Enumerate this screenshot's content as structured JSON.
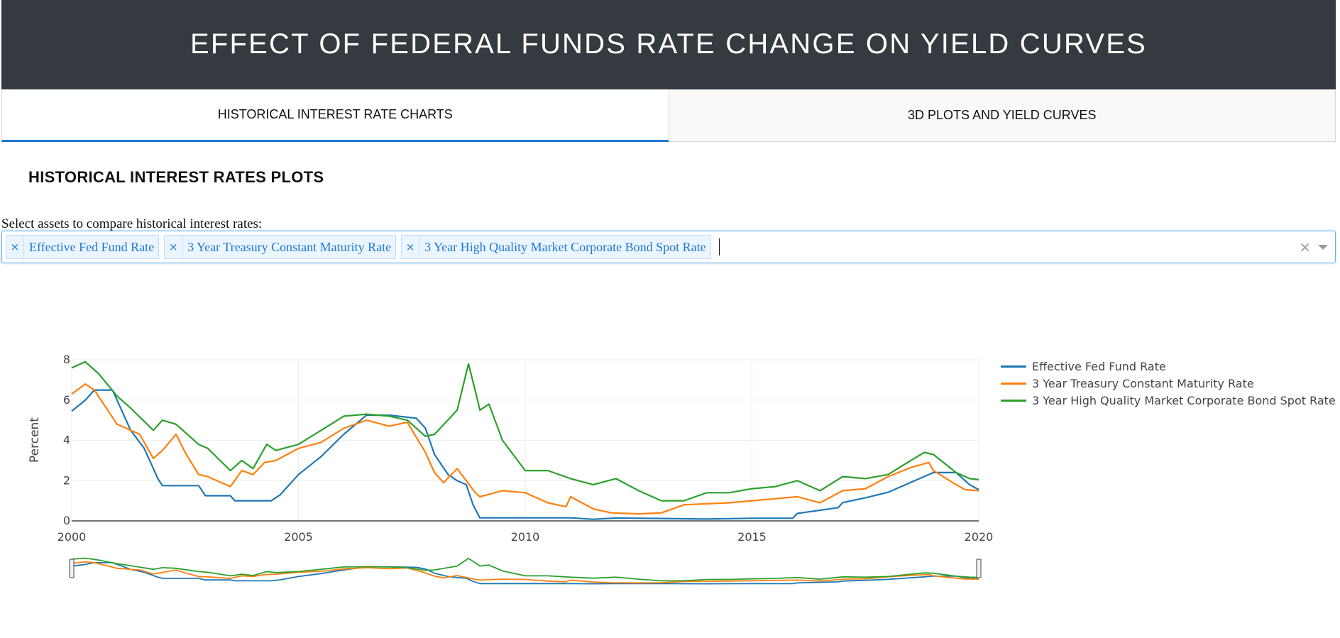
{
  "header": {
    "title": "EFFECT OF FEDERAL FUNDS RATE CHANGE ON YIELD CURVES"
  },
  "tabs": [
    {
      "label": "HISTORICAL INTEREST RATE CHARTS",
      "active": true
    },
    {
      "label": "3D PLOTS AND YIELD CURVES",
      "active": false
    }
  ],
  "section": {
    "heading": "HISTORICAL INTEREST RATES PLOTS",
    "select_label": "Select assets to compare historical interest rates:"
  },
  "selector": {
    "selected": [
      "Effective Fed Fund Rate",
      "3 Year Treasury Constant Maturity Rate",
      "3 Year High Quality Market Corporate Bond Spot Rate"
    ],
    "remove_glyph": "×",
    "clear_glyph": "×"
  },
  "colors": {
    "accent": "#1f78d1",
    "header_bg": "#343a40",
    "tag_bg": "#ebf5ff"
  },
  "chart_data": {
    "type": "line",
    "title": "",
    "xlabel": "",
    "ylabel": "Percent",
    "xlim": [
      2000,
      2020
    ],
    "ylim": [
      0,
      8
    ],
    "x_ticks": [
      "2000",
      "2005",
      "2010",
      "2015",
      "2020"
    ],
    "y_ticks": [
      "0",
      "2",
      "4",
      "6",
      "8"
    ],
    "grid": true,
    "legend_position": "right",
    "range_slider": true,
    "series": [
      {
        "name": "Effective Fed Fund Rate",
        "color": "#1f77b4",
        "x": [
          2000.0,
          2000.3,
          2000.5,
          2000.9,
          2001.0,
          2001.3,
          2001.6,
          2001.9,
          2002.0,
          2002.8,
          2002.95,
          2003.5,
          2003.6,
          2004.4,
          2004.6,
          2005.0,
          2005.5,
          2006.0,
          2006.5,
          2007.0,
          2007.6,
          2007.8,
          2008.0,
          2008.3,
          2008.5,
          2008.7,
          2008.85,
          2009.0,
          2010.0,
          2011.0,
          2011.5,
          2012.0,
          2013.0,
          2014.0,
          2015.0,
          2015.9,
          2016.0,
          2016.9,
          2017.0,
          2017.5,
          2018.0,
          2018.5,
          2019.0,
          2019.5,
          2019.8,
          2020.0
        ],
        "y": [
          5.45,
          6.0,
          6.5,
          6.5,
          6.0,
          4.5,
          3.6,
          2.1,
          1.75,
          1.75,
          1.25,
          1.25,
          1.0,
          1.0,
          1.3,
          2.3,
          3.2,
          4.3,
          5.25,
          5.25,
          5.1,
          4.6,
          3.3,
          2.3,
          2.0,
          1.8,
          0.8,
          0.15,
          0.15,
          0.15,
          0.08,
          0.14,
          0.12,
          0.09,
          0.13,
          0.13,
          0.37,
          0.66,
          0.91,
          1.15,
          1.42,
          1.91,
          2.4,
          2.4,
          1.8,
          1.55
        ]
      },
      {
        "name": "3 Year Treasury Constant Maturity Rate",
        "color": "#ff7f0e",
        "x": [
          2000.0,
          2000.3,
          2000.5,
          2001.0,
          2001.5,
          2001.8,
          2002.0,
          2002.3,
          2002.5,
          2002.8,
          2003.0,
          2003.5,
          2003.75,
          2004.0,
          2004.25,
          2004.5,
          2005.0,
          2005.5,
          2006.0,
          2006.5,
          2007.0,
          2007.4,
          2007.8,
          2008.0,
          2008.2,
          2008.5,
          2008.9,
          2009.0,
          2009.5,
          2010.0,
          2010.5,
          2010.9,
          2011.0,
          2011.5,
          2011.9,
          2012.5,
          2013.0,
          2013.5,
          2014.0,
          2014.5,
          2015.0,
          2015.5,
          2016.0,
          2016.5,
          2017.0,
          2017.5,
          2018.0,
          2018.5,
          2018.9,
          2019.0,
          2019.5,
          2019.7,
          2020.0
        ],
        "y": [
          6.3,
          6.8,
          6.5,
          4.8,
          4.3,
          3.1,
          3.5,
          4.3,
          3.4,
          2.3,
          2.2,
          1.7,
          2.5,
          2.3,
          2.9,
          3.0,
          3.6,
          3.9,
          4.6,
          5.0,
          4.7,
          4.9,
          3.4,
          2.4,
          1.9,
          2.6,
          1.4,
          1.2,
          1.5,
          1.4,
          0.9,
          0.7,
          1.2,
          0.6,
          0.4,
          0.35,
          0.4,
          0.8,
          0.85,
          0.9,
          1.0,
          1.1,
          1.2,
          0.9,
          1.5,
          1.6,
          2.2,
          2.65,
          2.9,
          2.5,
          1.8,
          1.55,
          1.5
        ]
      },
      {
        "name": "3 Year High Quality Market Corporate Bond Spot Rate",
        "color": "#2ca02c",
        "x": [
          2000.0,
          2000.3,
          2000.6,
          2001.0,
          2001.3,
          2001.8,
          2002.0,
          2002.3,
          2002.8,
          2003.0,
          2003.5,
          2003.75,
          2004.0,
          2004.3,
          2004.5,
          2005.0,
          2005.5,
          2006.0,
          2006.5,
          2007.0,
          2007.4,
          2007.8,
          2008.0,
          2008.5,
          2008.75,
          2008.95,
          2009.0,
          2009.2,
          2009.5,
          2010.0,
          2010.5,
          2011.0,
          2011.5,
          2012.0,
          2012.5,
          2013.0,
          2013.5,
          2014.0,
          2014.5,
          2015.0,
          2015.5,
          2016.0,
          2016.5,
          2017.0,
          2017.5,
          2018.0,
          2018.5,
          2018.8,
          2019.0,
          2019.5,
          2019.8,
          2020.0
        ],
        "y": [
          7.6,
          7.9,
          7.3,
          6.2,
          5.6,
          4.5,
          5.0,
          4.8,
          3.8,
          3.6,
          2.5,
          3.0,
          2.6,
          3.8,
          3.5,
          3.8,
          4.5,
          5.2,
          5.3,
          5.2,
          5.0,
          4.2,
          4.3,
          5.5,
          7.8,
          6.0,
          5.5,
          5.8,
          4.0,
          2.5,
          2.5,
          2.1,
          1.8,
          2.1,
          1.5,
          1.0,
          1.0,
          1.4,
          1.4,
          1.6,
          1.7,
          2.0,
          1.5,
          2.2,
          2.1,
          2.3,
          3.0,
          3.4,
          3.3,
          2.4,
          2.1,
          2.05
        ]
      }
    ]
  }
}
